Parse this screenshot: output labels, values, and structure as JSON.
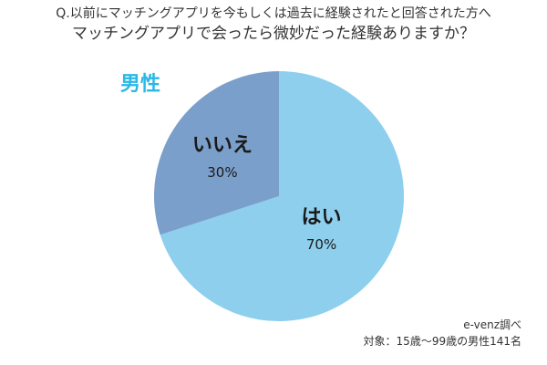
{
  "title": {
    "line1": "Q.以前にマッチングアプリを今もしくは過去に経験されたと回答された方へ",
    "line2": "マッチングアプリで会ったら微妙だった経験ありますか？"
  },
  "group_label": "男性",
  "source": "e-venz調べ",
  "target": "対象：15歳〜99歳の男性141名",
  "colors": {
    "yes": "#8ecfee",
    "no": "#7b9fcb",
    "group_label": "#2ab8e6"
  },
  "chart_data": {
    "type": "pie",
    "categories": [
      "はい",
      "いいえ"
    ],
    "values": [
      70,
      30
    ],
    "value_labels": [
      "70%",
      "30%"
    ],
    "colors": [
      "#8ecfee",
      "#7b9fcb"
    ],
    "start": "12 o'clock, clockwise"
  }
}
